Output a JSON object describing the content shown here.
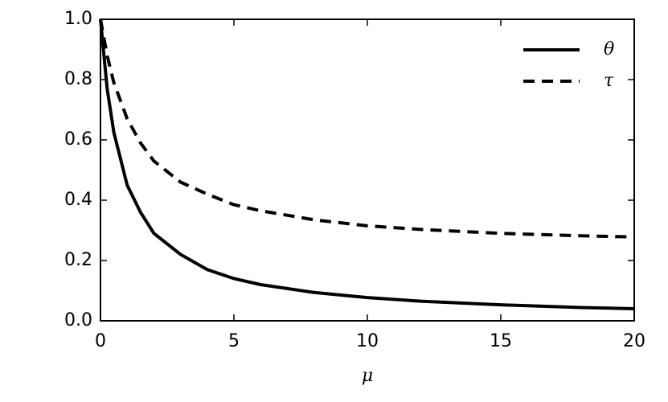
{
  "chart_data": {
    "type": "line",
    "xlabel": "μ",
    "x": [
      0,
      0.25,
      0.5,
      1,
      1.5,
      2,
      3,
      4,
      5,
      6,
      8,
      10,
      12,
      15,
      18,
      20
    ],
    "series": [
      {
        "name": "θ",
        "color": "#000000",
        "dash": "solid",
        "values": [
          1.0,
          0.77,
          0.625,
          0.45,
          0.36,
          0.29,
          0.22,
          0.17,
          0.14,
          0.12,
          0.094,
          0.077,
          0.065,
          0.053,
          0.044,
          0.04
        ]
      },
      {
        "name": "τ",
        "color": "#000000",
        "dash": "dashed",
        "values": [
          1.0,
          0.88,
          0.79,
          0.67,
          0.59,
          0.53,
          0.46,
          0.42,
          0.385,
          0.365,
          0.335,
          0.315,
          0.303,
          0.29,
          0.282,
          0.278
        ]
      }
    ],
    "xlim": [
      0,
      20
    ],
    "xticks": [
      0,
      5,
      10,
      15,
      20
    ],
    "ylim": [
      0,
      1
    ],
    "yticks": [
      {
        "value": 0,
        "label": "0.0"
      },
      0.2,
      0.4,
      0.6,
      0.8,
      {
        "value": 1,
        "label": "1.0"
      }
    ],
    "grid": false,
    "legend": "upper right"
  }
}
